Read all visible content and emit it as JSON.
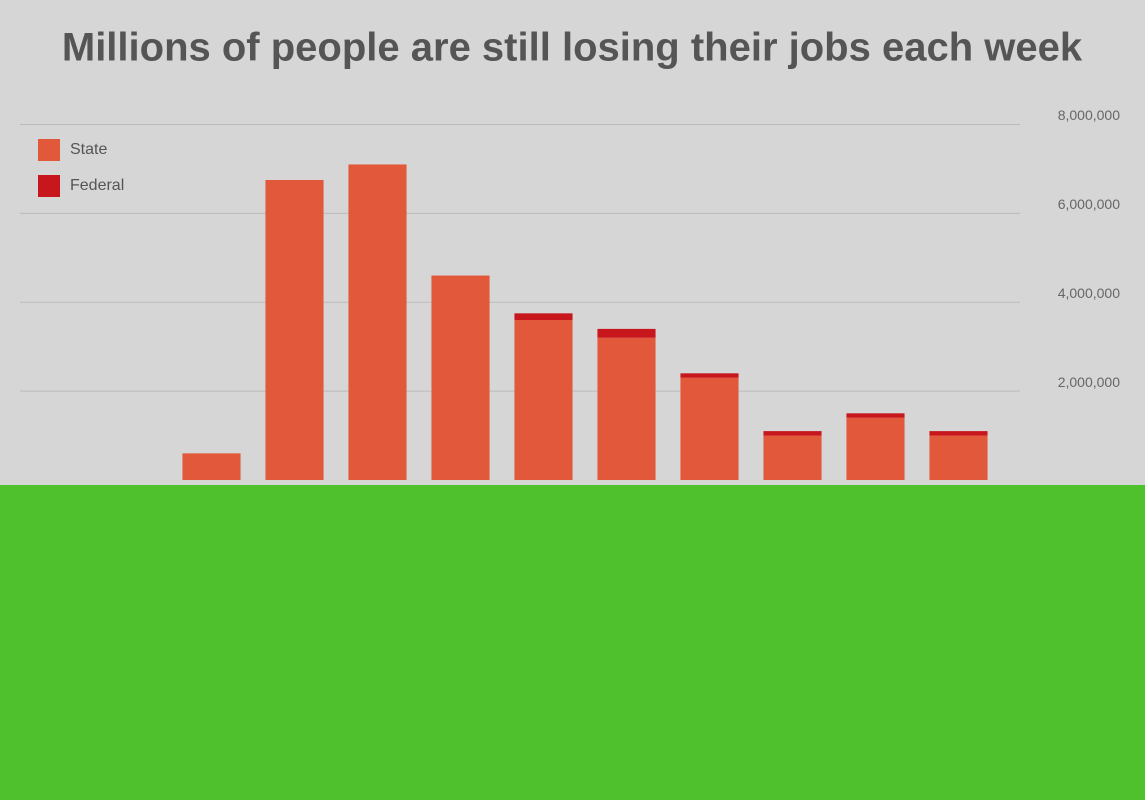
{
  "chart_data": {
    "type": "stacked-bar",
    "title": "Millions of people are still losing their jobs each week",
    "categories": [
      null,
      null,
      null,
      null,
      null,
      null,
      null,
      null,
      null,
      null
    ],
    "series": [
      {
        "name": "State",
        "color": "#e2583b",
        "values": [
          600000,
          6750000,
          7100000,
          4600000,
          3600000,
          3200000,
          2300000,
          1000000,
          1400000,
          1000000
        ]
      },
      {
        "name": "Federal",
        "color": "#c8161d",
        "values": [
          0,
          0,
          0,
          0,
          150000,
          200000,
          100000,
          100000,
          100000,
          100000
        ]
      }
    ],
    "ylim": [
      0,
      9000000
    ],
    "yticks": [
      {
        "value": 2000000,
        "label": "2,000,000"
      },
      {
        "value": 4000000,
        "label": "4,000,000"
      },
      {
        "value": 6000000,
        "label": "6,000,000"
      },
      {
        "value": 8000000,
        "label": "8,000,000"
      }
    ],
    "grid": true,
    "legend": "top-left"
  }
}
